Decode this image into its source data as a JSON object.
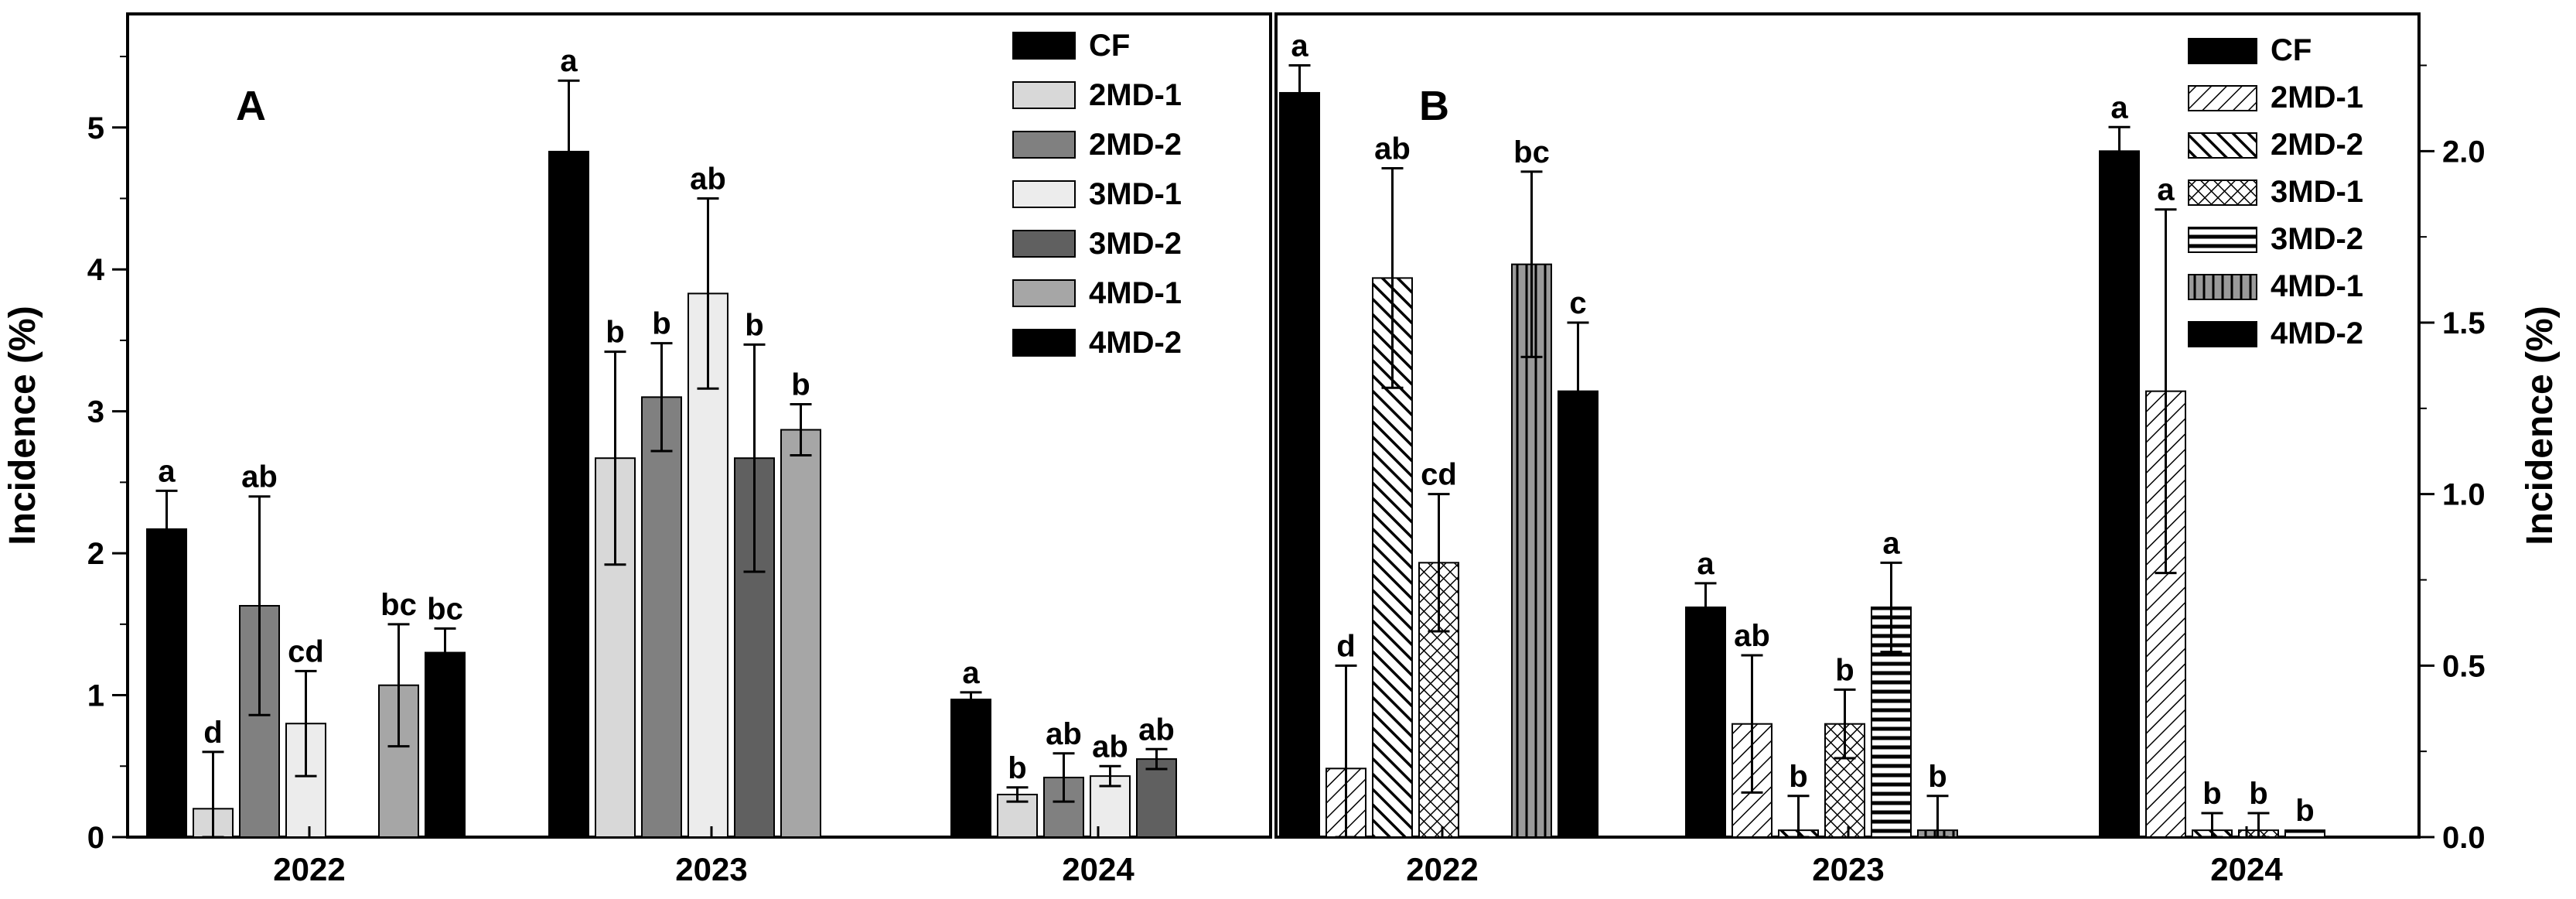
{
  "chart_data": [
    {
      "panel": "A",
      "type": "bar",
      "ylabel": "Incidence (%)",
      "ylim": [
        0,
        5.8
      ],
      "yticks": [
        0,
        1,
        2,
        3,
        4,
        5
      ],
      "ytick_labels": [
        "0",
        "1",
        "2",
        "3",
        "4",
        "5"
      ],
      "categories": [
        "2022",
        "2023",
        "2024"
      ],
      "legend_position": "top-right",
      "series": [
        {
          "name": "CF",
          "color": "#000000",
          "pattern": "solid",
          "values": [
            2.17,
            4.83,
            0.97
          ],
          "errors": [
            0.27,
            0.5,
            0.05
          ],
          "labels": [
            "a",
            "a",
            "a"
          ]
        },
        {
          "name": "2MD-1",
          "color": "#d8d8d8",
          "pattern": "solid",
          "values": [
            0.2,
            2.67,
            0.3
          ],
          "errors": [
            0.4,
            0.75,
            0.05
          ],
          "labels": [
            "d",
            "b",
            "b"
          ]
        },
        {
          "name": "2MD-2",
          "color": "#808080",
          "pattern": "solid",
          "values": [
            1.63,
            3.1,
            0.42
          ],
          "errors": [
            0.77,
            0.38,
            0.17
          ],
          "labels": [
            "ab",
            "b",
            "ab"
          ]
        },
        {
          "name": "3MD-1",
          "color": "#ececec",
          "pattern": "solid",
          "values": [
            0.8,
            3.83,
            0.43
          ],
          "errors": [
            0.37,
            0.67,
            0.07
          ],
          "labels": [
            "cd",
            "ab",
            "ab"
          ]
        },
        {
          "name": "3MD-2",
          "color": "#606060",
          "pattern": "solid",
          "values": [
            null,
            2.67,
            0.55
          ],
          "errors": [
            null,
            0.8,
            0.07
          ],
          "labels": [
            "",
            "b",
            "ab"
          ]
        },
        {
          "name": "4MD-1",
          "color": "#a6a6a6",
          "pattern": "solid",
          "values": [
            1.07,
            2.87,
            null
          ],
          "errors": [
            0.43,
            0.18,
            null
          ],
          "labels": [
            "bc",
            "b",
            ""
          ]
        },
        {
          "name": "4MD-2",
          "color": "#000000",
          "pattern": "solid",
          "values": [
            1.3,
            null,
            null
          ],
          "errors": [
            0.17,
            null,
            null
          ],
          "labels": [
            "bc",
            "",
            ""
          ]
        }
      ]
    },
    {
      "panel": "B",
      "type": "bar",
      "ylabel": "Incidence (%)",
      "ylim": [
        0,
        2.4
      ],
      "yticks": [
        0,
        0.5,
        1,
        1.5,
        2
      ],
      "ytick_labels": [
        "0.0",
        "0.5",
        "1.0",
        "1.5",
        "2.0"
      ],
      "categories": [
        "2022",
        "2023",
        "2024"
      ],
      "legend_position": "top-right",
      "series": [
        {
          "name": "CF",
          "color": "#000000",
          "pattern": "solid",
          "values": [
            2.17,
            0.67,
            2.0
          ],
          "errors": [
            0.08,
            0.07,
            0.07
          ],
          "labels": [
            "a",
            "a",
            "a"
          ]
        },
        {
          "name": "2MD-1",
          "color": "#ffffff",
          "pattern": "diag-thin",
          "values": [
            0.2,
            0.33,
            1.3
          ],
          "errors": [
            0.3,
            0.2,
            0.53
          ],
          "labels": [
            "d",
            "ab",
            "a"
          ]
        },
        {
          "name": "2MD-2",
          "color": "#ffffff",
          "pattern": "diag-thick",
          "values": [
            1.63,
            0.02,
            0.02
          ],
          "errors": [
            0.32,
            0.1,
            0.05
          ],
          "labels": [
            "ab",
            "b",
            "b"
          ]
        },
        {
          "name": "3MD-1",
          "color": "#ffffff",
          "pattern": "crosshatch",
          "values": [
            0.8,
            0.33,
            0.02
          ],
          "errors": [
            0.2,
            0.1,
            0.05
          ],
          "labels": [
            "cd",
            "b",
            "b"
          ]
        },
        {
          "name": "3MD-2",
          "color": "#ffffff",
          "pattern": "horizontal",
          "values": [
            null,
            0.67,
            0.02
          ],
          "errors": [
            null,
            0.13,
            0
          ],
          "labels": [
            "",
            "a",
            "b"
          ]
        },
        {
          "name": "4MD-1",
          "color": "#ffffff",
          "pattern": "vertical",
          "values": [
            1.67,
            0.02,
            null
          ],
          "errors": [
            0.27,
            0.1,
            null
          ],
          "labels": [
            "bc",
            "b",
            ""
          ]
        },
        {
          "name": "4MD-2",
          "color": "#000000",
          "pattern": "solid",
          "values": [
            1.3,
            null,
            null
          ],
          "errors": [
            0.2,
            null,
            null
          ],
          "labels": [
            "c",
            "",
            ""
          ]
        }
      ]
    }
  ]
}
